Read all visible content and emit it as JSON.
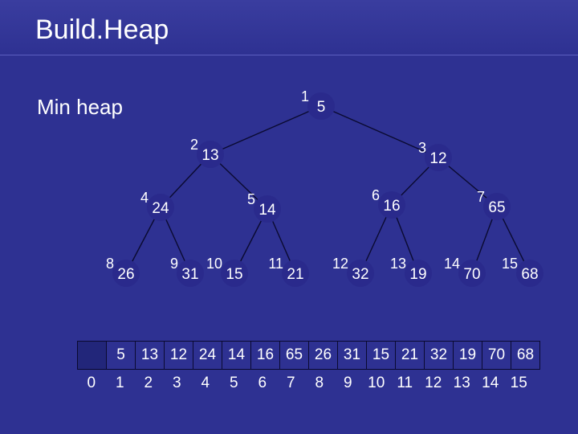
{
  "title": "Build.Heap",
  "subtitle": "Min heap",
  "heap": {
    "nodes": [
      {
        "index": "1",
        "value": "5"
      },
      {
        "index": "2",
        "value": "13"
      },
      {
        "index": "3",
        "value": "12"
      },
      {
        "index": "4",
        "value": "24"
      },
      {
        "index": "5",
        "value": "14"
      },
      {
        "index": "6",
        "value": "16"
      },
      {
        "index": "7",
        "value": "65"
      },
      {
        "index": "8",
        "value": "26"
      },
      {
        "index": "9",
        "value": "31"
      },
      {
        "index": "10",
        "value": "15"
      },
      {
        "index": "11",
        "value": "21"
      },
      {
        "index": "12",
        "value": "32"
      },
      {
        "index": "13",
        "value": "19"
      },
      {
        "index": "14",
        "value": "70"
      },
      {
        "index": "15",
        "value": "68"
      }
    ]
  },
  "array": {
    "values": [
      "",
      "5",
      "13",
      "12",
      "24",
      "14",
      "16",
      "65",
      "26",
      "31",
      "15",
      "21",
      "32",
      "19",
      "70",
      "68"
    ],
    "indices": [
      "0",
      "1",
      "2",
      "3",
      "4",
      "5",
      "6",
      "7",
      "8",
      "9",
      "10",
      "11",
      "12",
      "13",
      "14",
      "15"
    ]
  },
  "colors": {
    "background": "#2e3192",
    "node": "#2a2a8c",
    "edge": "#0a0a30",
    "text": "#ffffff"
  }
}
